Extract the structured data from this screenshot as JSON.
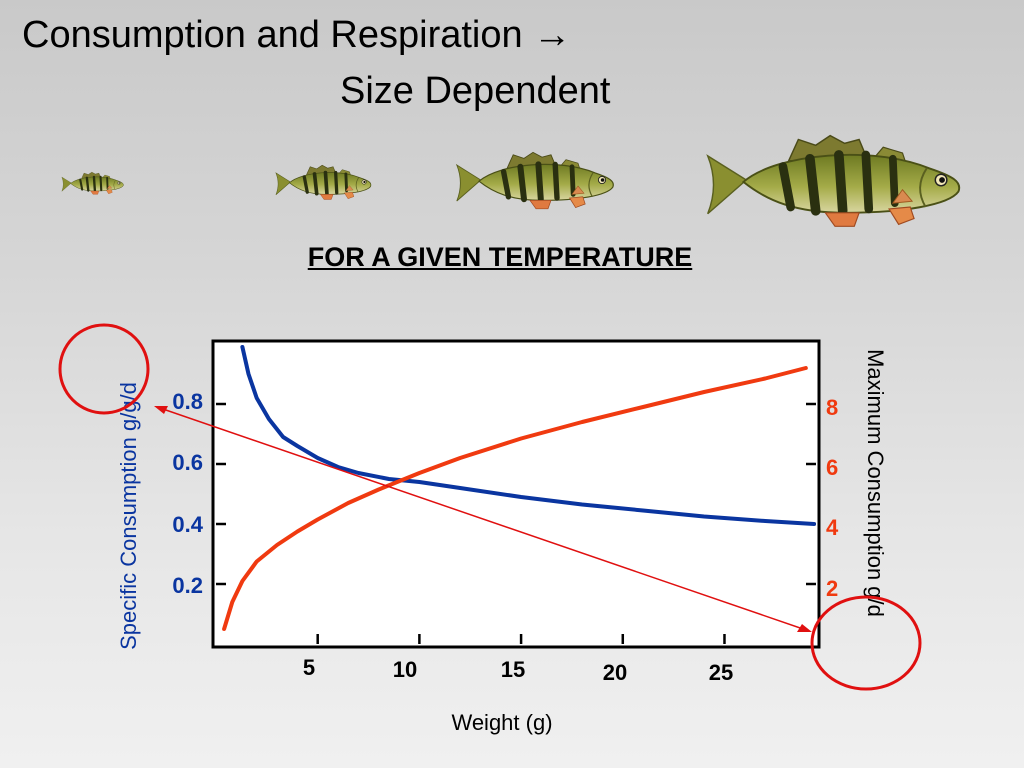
{
  "slide": {
    "title_line1": "Consumption and Respiration →",
    "title_line2": "Size Dependent",
    "subtitle": "FOR A GIVEN TEMPERATURE"
  },
  "colors": {
    "specific": "#0a35a0",
    "maximum": "#f03a10",
    "annotation": "#e01010",
    "fish_body": "#8e9a3a",
    "fish_bar": "#2a3010",
    "fish_fin": "#e07a40"
  },
  "fish_images": [
    {
      "name": "small-perch",
      "scale": 0.22
    },
    {
      "name": "medium-small-perch",
      "scale": 0.33
    },
    {
      "name": "medium-large-perch",
      "scale": 0.55
    },
    {
      "name": "large-perch",
      "scale": 0.87
    }
  ],
  "chart_data": {
    "type": "line",
    "xlabel": "Weight (g)",
    "ylabel_left": "Specific Consumption g/g/d",
    "ylabel_right": "Maximum Consumption g/d",
    "xlim": [
      0,
      29.5
    ],
    "ylim_left": [
      0,
      1.0
    ],
    "ylim_right": [
      0,
      10
    ],
    "x_ticks": [
      "5",
      "10",
      "15",
      "20",
      "25"
    ],
    "y_left_ticks": [
      "0.2",
      "0.4",
      "0.6",
      "0.8"
    ],
    "y_right_ticks": [
      "2",
      "4",
      "6",
      "8"
    ],
    "series": [
      {
        "name": "Specific Consumption g/g/d",
        "axis": "left",
        "x": [
          1.3,
          1.6,
          2.0,
          2.6,
          3.3,
          4.0,
          5.0,
          6.0,
          7.0,
          8.5,
          10.0,
          12.0,
          15.0,
          18.0,
          21.0,
          24.0,
          27.0,
          29.4
        ],
        "y": [
          0.99,
          0.9,
          0.82,
          0.75,
          0.69,
          0.66,
          0.62,
          0.59,
          0.57,
          0.55,
          0.54,
          0.52,
          0.49,
          0.465,
          0.445,
          0.425,
          0.41,
          0.4
        ]
      },
      {
        "name": "Maximum Consumption g/d",
        "axis": "right",
        "x": [
          0.4,
          0.8,
          1.3,
          2.0,
          3.0,
          4.0,
          5.0,
          6.5,
          8.0,
          10.0,
          12.0,
          15.0,
          18.0,
          21.0,
          24.0,
          27.0,
          29.0
        ],
        "y": [
          0.5,
          1.4,
          2.1,
          2.75,
          3.3,
          3.75,
          4.15,
          4.7,
          5.15,
          5.7,
          6.2,
          6.85,
          7.4,
          7.9,
          8.4,
          8.85,
          9.2
        ]
      }
    ],
    "annotations": [
      {
        "type": "circle",
        "around": "ylabel_left"
      },
      {
        "type": "circle",
        "around": "ylabel_right"
      },
      {
        "type": "double-arrow",
        "between": [
          "ylabel_left",
          "ylabel_right"
        ]
      }
    ]
  }
}
